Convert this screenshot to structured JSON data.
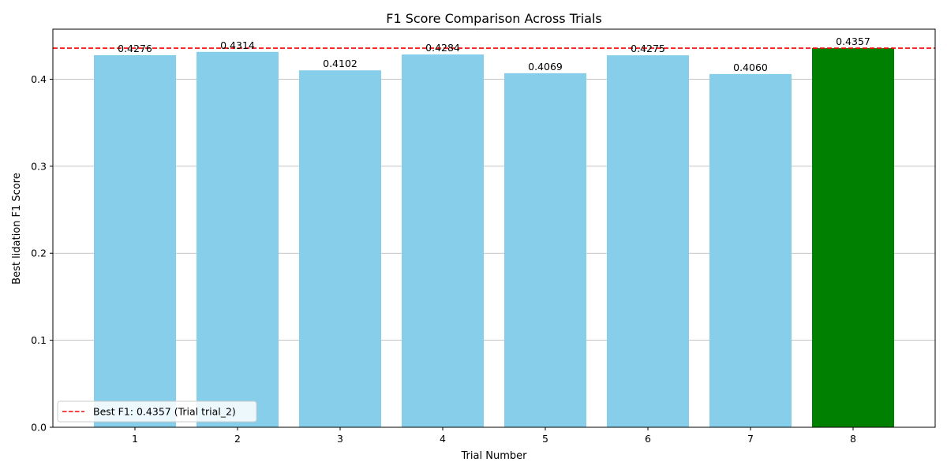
{
  "chart_data": {
    "type": "bar",
    "title": "F1 Score Comparison Across Trials",
    "xlabel": "Trial Number",
    "ylabel": "Best lidation F1 Score",
    "categories": [
      "1",
      "2",
      "3",
      "4",
      "5",
      "6",
      "7",
      "8"
    ],
    "values": [
      0.4276,
      0.4314,
      0.4102,
      0.4284,
      0.4069,
      0.4275,
      0.406,
      0.4357
    ],
    "value_labels": [
      "0.4276",
      "0.4314",
      "0.4102",
      "0.4284",
      "0.4069",
      "0.4275",
      "0.4060",
      "0.4357"
    ],
    "highlight_index": 7,
    "ylim": [
      0,
      0.4575
    ],
    "yticks": [
      0.0,
      0.1,
      0.2,
      0.3,
      0.4
    ],
    "ytick_labels": [
      "0.0",
      "0.1",
      "0.2",
      "0.3",
      "0.4"
    ],
    "grid": "y",
    "reference_line": {
      "value": 0.4357,
      "style": "dashed",
      "color": "#ff0000"
    },
    "legend": {
      "placement": "lower-left",
      "entries": [
        "Best F1: 0.4357 (Trial trial_2)"
      ]
    },
    "colors": {
      "bar": "#87ceeb",
      "best_bar": "#008000",
      "reference": "#ff0000",
      "grid": "#b0b0b0"
    }
  }
}
